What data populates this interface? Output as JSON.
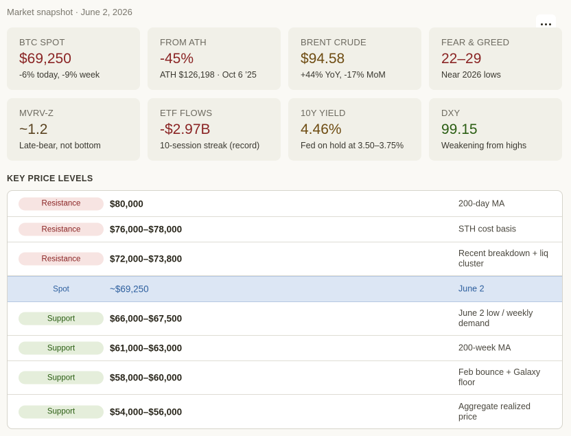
{
  "header": {
    "snapshot_text": "Market snapshot · June 2, 2026"
  },
  "menu": {
    "more_label": "more options"
  },
  "cards": [
    {
      "label": "BTC SPOT",
      "value": "$69,250",
      "sub": "-6% today, -9% week",
      "tone": "red"
    },
    {
      "label": "FROM ATH",
      "value": "-45%",
      "sub": "ATH $126,198 · Oct 6 ’25",
      "tone": "red"
    },
    {
      "label": "BRENT CRUDE",
      "value": "$94.58",
      "sub": "+44% YoY, -17% MoM",
      "tone": "olive"
    },
    {
      "label": "FEAR & GREED",
      "value": "22–29",
      "sub": "Near 2026 lows",
      "tone": "red"
    },
    {
      "label": "MVRV-Z",
      "value": "~1.2",
      "sub": "Late-bear, not bottom",
      "tone": "neutral"
    },
    {
      "label": "ETF FLOWS",
      "value": "-$2.97B",
      "sub": "10-session streak (record)",
      "tone": "red"
    },
    {
      "label": "10Y YIELD",
      "value": "4.46%",
      "sub": "Fed on hold at 3.50–3.75%",
      "tone": "olive"
    },
    {
      "label": "DXY",
      "value": "99.15",
      "sub": "Weakening from highs",
      "tone": "green"
    }
  ],
  "levels": {
    "title": "KEY PRICE LEVELS",
    "rows": [
      {
        "tag": "Resistance",
        "price": "$80,000",
        "note": "200-day MA"
      },
      {
        "tag": "Resistance",
        "price": "$76,000–$78,000",
        "note": "STH cost basis"
      },
      {
        "tag": "Resistance",
        "price": "$72,000–$73,800",
        "note": "Recent breakdown + liq cluster"
      },
      {
        "tag": "Spot",
        "price": "~$69,250",
        "note": "June 2"
      },
      {
        "tag": "Support",
        "price": "$66,000–$67,500",
        "note": "June 2 low / weekly demand"
      },
      {
        "tag": "Support",
        "price": "$61,000–$63,000",
        "note": "200-week MA"
      },
      {
        "tag": "Support",
        "price": "$58,000–$60,000",
        "note": "Feb bounce + Galaxy floor"
      },
      {
        "tag": "Support",
        "price": "$54,000–$56,000",
        "note": "Aggregate realized price"
      }
    ]
  },
  "colors": {
    "resistance": "#8a2424",
    "support": "#2a5d12",
    "spot": "#2d5f9e",
    "card_bg": "#f1f0e8"
  }
}
